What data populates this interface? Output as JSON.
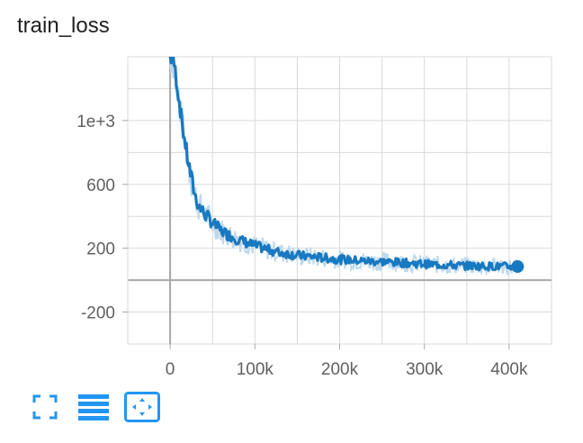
{
  "chart_data": {
    "type": "line",
    "title": "train_loss",
    "xlabel": "",
    "ylabel": "",
    "xlim": [
      -50000,
      450000
    ],
    "ylim": [
      -400,
      1400
    ],
    "xticks": [
      0,
      100000,
      200000,
      300000,
      400000
    ],
    "xtick_labels": [
      "0",
      "100k",
      "200k",
      "300k",
      "400k"
    ],
    "yticks": [
      -200,
      200,
      600,
      1000
    ],
    "ytick_labels": [
      "-200",
      "200",
      "600",
      "1e+3"
    ],
    "grid": true,
    "colors": {
      "smoothed": "#1879c0",
      "raw": "#bfd9ec",
      "grid": "#d9d9d9",
      "axis": "#a8a8a8"
    },
    "series": [
      {
        "x": [
          0,
          5000,
          10000,
          15000,
          20000,
          25000,
          30000,
          35000,
          40000,
          45000,
          50000,
          60000,
          70000,
          80000,
          90000,
          100000,
          110000,
          120000,
          130000,
          140000,
          150000,
          160000,
          170000,
          180000,
          190000,
          200000,
          210000,
          220000,
          230000,
          240000,
          250000,
          260000,
          270000,
          280000,
          290000,
          300000,
          310000,
          320000,
          330000,
          340000,
          350000,
          360000,
          370000,
          380000,
          390000,
          400000,
          410000
        ],
        "values": [
          1400,
          1350,
          1150,
          950,
          780,
          640,
          520,
          455,
          420,
          390,
          360,
          310,
          280,
          255,
          235,
          215,
          200,
          185,
          172,
          165,
          155,
          150,
          146,
          140,
          135,
          130,
          127,
          123,
          120,
          118,
          116,
          113,
          110,
          107,
          104,
          101,
          98,
          96,
          94,
          92,
          90,
          89,
          88,
          87,
          86,
          85,
          85
        ]
      }
    ]
  },
  "toolbar": {
    "icons": [
      "fullscreen-icon",
      "list-icon",
      "fit-domain-icon"
    ],
    "accent": "#2196f3"
  }
}
